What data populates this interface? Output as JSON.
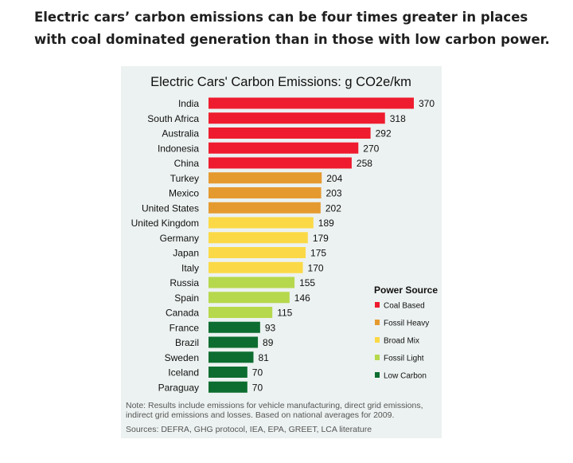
{
  "headline": "Electric cars’ carbon emissions can be four times greater in places with coal dominated generation than in those with low carbon power.",
  "chart_data": {
    "type": "bar",
    "orientation": "horizontal",
    "title": "Electric Cars' Carbon Emissions: g CO2e/km",
    "categories": [
      "India",
      "South Africa",
      "Australia",
      "Indonesia",
      "China",
      "Turkey",
      "Mexico",
      "United States",
      "United Kingdom",
      "Germany",
      "Japan",
      "Italy",
      "Russia",
      "Spain",
      "Canada",
      "France",
      "Brazil",
      "Sweden",
      "Iceland",
      "Paraguay"
    ],
    "values": [
      370,
      318,
      292,
      270,
      258,
      204,
      203,
      202,
      189,
      179,
      175,
      170,
      155,
      146,
      115,
      93,
      89,
      81,
      70,
      70
    ],
    "groups": [
      "Coal Based",
      "Coal Based",
      "Coal Based",
      "Coal Based",
      "Coal Based",
      "Fossil Heavy",
      "Fossil Heavy",
      "Fossil Heavy",
      "Broad Mix",
      "Broad Mix",
      "Broad Mix",
      "Broad Mix",
      "Fossil Light",
      "Fossil Light",
      "Fossil Light",
      "Low Carbon",
      "Low Carbon",
      "Low Carbon",
      "Low Carbon",
      "Low Carbon"
    ],
    "legend": {
      "title": "Power Source",
      "placement": "right",
      "items": [
        {
          "name": "Coal Based",
          "color": "#ee1c2e"
        },
        {
          "name": "Fossil Heavy",
          "color": "#e59a30"
        },
        {
          "name": "Broad Mix",
          "color": "#fbd946"
        },
        {
          "name": "Fossil Light",
          "color": "#b6d84c"
        },
        {
          "name": "Low Carbon",
          "color": "#0d6d30"
        }
      ]
    },
    "note": "Note:  Results include emissions for vehicle manufacturing, direct grid emissions, indirect grid emissions and losses.  Based on national averages for 2009.",
    "sources": "Sources: DEFRA, GHG protocol, IEA, EPA, GREET, LCA literature"
  }
}
